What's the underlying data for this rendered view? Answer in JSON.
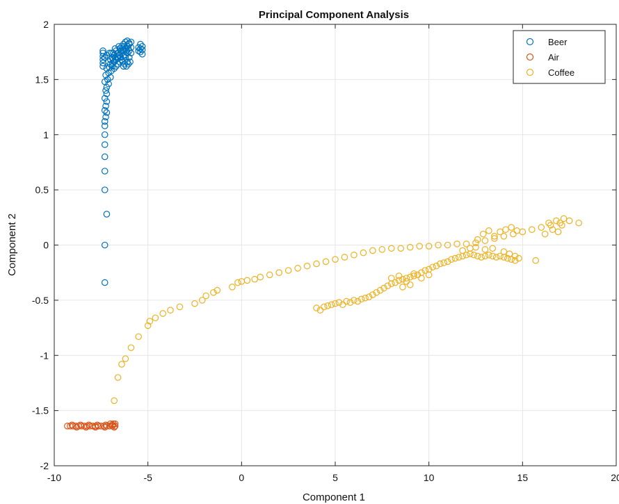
{
  "chart_data": {
    "type": "scatter",
    "title": "Principal Component Analysis",
    "xlabel": "Component 1",
    "ylabel": "Component 2",
    "xlim": [
      -10,
      20
    ],
    "ylim": [
      -2,
      2
    ],
    "xticks": [
      -10,
      -5,
      0,
      5,
      10,
      15,
      20
    ],
    "yticks": [
      -2,
      -1.5,
      -1,
      -0.5,
      0,
      0.5,
      1,
      1.5,
      2
    ],
    "xtick_labels": [
      "-10",
      "-5",
      "0",
      "5",
      "10",
      "15",
      "20"
    ],
    "ytick_labels": [
      "-2",
      "-1.5",
      "-1",
      "-0.5",
      "0",
      "0.5",
      "1",
      "1.5",
      "2"
    ],
    "grid": true,
    "legend_position": "top-right",
    "legend": [
      "Beer",
      "Air",
      "Coffee"
    ],
    "series": [
      {
        "name": "Beer",
        "color": "#0072BD",
        "points": [
          [
            -7.3,
            -0.34
          ],
          [
            -7.3,
            0.0
          ],
          [
            -7.2,
            0.28
          ],
          [
            -7.3,
            0.5
          ],
          [
            -7.3,
            0.67
          ],
          [
            -7.3,
            0.8
          ],
          [
            -7.3,
            0.91
          ],
          [
            -7.3,
            1.0
          ],
          [
            -7.3,
            1.08
          ],
          [
            -7.3,
            1.12
          ],
          [
            -7.25,
            1.16
          ],
          [
            -7.2,
            1.2
          ],
          [
            -7.3,
            1.22
          ],
          [
            -7.25,
            1.26
          ],
          [
            -7.2,
            1.3
          ],
          [
            -7.3,
            1.33
          ],
          [
            -7.2,
            1.37
          ],
          [
            -7.25,
            1.4
          ],
          [
            -7.2,
            1.43
          ],
          [
            -7.1,
            1.46
          ],
          [
            -7.3,
            1.48
          ],
          [
            -7.15,
            1.5
          ],
          [
            -7.0,
            1.52
          ],
          [
            -7.25,
            1.54
          ],
          [
            -7.1,
            1.56
          ],
          [
            -6.95,
            1.58
          ],
          [
            -7.2,
            1.6
          ],
          [
            -7.05,
            1.61
          ],
          [
            -6.9,
            1.62
          ],
          [
            -6.8,
            1.6
          ],
          [
            -7.4,
            1.62
          ],
          [
            -7.4,
            1.65
          ],
          [
            -7.4,
            1.68
          ],
          [
            -7.4,
            1.71
          ],
          [
            -7.4,
            1.74
          ],
          [
            -7.4,
            1.76
          ],
          [
            -7.3,
            1.7
          ],
          [
            -7.2,
            1.72
          ],
          [
            -7.1,
            1.66
          ],
          [
            -7.0,
            1.68
          ],
          [
            -6.9,
            1.7
          ],
          [
            -6.8,
            1.72
          ],
          [
            -6.7,
            1.68
          ],
          [
            -6.6,
            1.7
          ],
          [
            -6.5,
            1.72
          ],
          [
            -6.4,
            1.74
          ],
          [
            -6.3,
            1.76
          ],
          [
            -6.2,
            1.78
          ],
          [
            -6.1,
            1.8
          ],
          [
            -6.0,
            1.82
          ],
          [
            -5.9,
            1.84
          ],
          [
            -6.7,
            1.76
          ],
          [
            -6.6,
            1.74
          ],
          [
            -6.5,
            1.78
          ],
          [
            -6.4,
            1.8
          ],
          [
            -6.3,
            1.82
          ],
          [
            -6.2,
            1.84
          ],
          [
            -6.1,
            1.85
          ],
          [
            -6.0,
            1.83
          ],
          [
            -5.9,
            1.79
          ],
          [
            -5.9,
            1.74
          ],
          [
            -6.0,
            1.7
          ],
          [
            -6.1,
            1.66
          ],
          [
            -6.2,
            1.7
          ],
          [
            -6.3,
            1.72
          ],
          [
            -6.4,
            1.68
          ],
          [
            -6.5,
            1.66
          ],
          [
            -6.6,
            1.64
          ],
          [
            -6.7,
            1.62
          ],
          [
            -6.8,
            1.66
          ],
          [
            -6.9,
            1.64
          ],
          [
            -7.0,
            1.64
          ],
          [
            -6.85,
            1.74
          ],
          [
            -6.75,
            1.78
          ],
          [
            -6.55,
            1.8
          ],
          [
            -6.45,
            1.76
          ],
          [
            -6.35,
            1.78
          ],
          [
            -6.25,
            1.8
          ],
          [
            -6.15,
            1.76
          ],
          [
            -6.05,
            1.78
          ],
          [
            -6.05,
            1.64
          ],
          [
            -5.95,
            1.66
          ],
          [
            -6.15,
            1.62
          ],
          [
            -6.25,
            1.64
          ],
          [
            -6.35,
            1.66
          ],
          [
            -6.45,
            1.7
          ],
          [
            -6.55,
            1.72
          ],
          [
            -6.65,
            1.7
          ],
          [
            -6.75,
            1.7
          ],
          [
            -6.85,
            1.68
          ],
          [
            -6.95,
            1.74
          ],
          [
            -7.05,
            1.74
          ],
          [
            -6.2,
            1.72
          ],
          [
            -6.1,
            1.74
          ],
          [
            -6.0,
            1.76
          ],
          [
            -6.3,
            1.62
          ],
          [
            -5.4,
            1.82
          ],
          [
            -5.4,
            1.78
          ],
          [
            -5.4,
            1.75
          ],
          [
            -5.3,
            1.8
          ],
          [
            -5.3,
            1.77
          ],
          [
            -5.3,
            1.73
          ],
          [
            -5.5,
            1.79
          ],
          [
            -5.5,
            1.76
          ]
        ]
      },
      {
        "name": "Air",
        "color": "#D95319",
        "points": [
          [
            -9.3,
            -1.64
          ],
          [
            -9.15,
            -1.64
          ],
          [
            -9.0,
            -1.64
          ],
          [
            -8.85,
            -1.64
          ],
          [
            -8.7,
            -1.64
          ],
          [
            -8.55,
            -1.64
          ],
          [
            -8.4,
            -1.64
          ],
          [
            -8.25,
            -1.64
          ],
          [
            -8.1,
            -1.64
          ],
          [
            -7.95,
            -1.64
          ],
          [
            -7.8,
            -1.64
          ],
          [
            -7.65,
            -1.64
          ],
          [
            -7.5,
            -1.64
          ],
          [
            -7.35,
            -1.64
          ],
          [
            -7.2,
            -1.64
          ],
          [
            -7.05,
            -1.64
          ],
          [
            -6.9,
            -1.64
          ],
          [
            -6.75,
            -1.64
          ],
          [
            -9.05,
            -1.63
          ],
          [
            -8.6,
            -1.63
          ],
          [
            -8.15,
            -1.63
          ],
          [
            -7.7,
            -1.63
          ],
          [
            -7.25,
            -1.63
          ],
          [
            -6.9,
            -1.63
          ],
          [
            -8.8,
            -1.65
          ],
          [
            -8.3,
            -1.65
          ],
          [
            -7.8,
            -1.65
          ],
          [
            -7.3,
            -1.65
          ],
          [
            -6.8,
            -1.65
          ],
          [
            -6.85,
            -1.62
          ],
          [
            -6.75,
            -1.62
          ],
          [
            -7.0,
            -1.62
          ]
        ]
      },
      {
        "name": "Coffee",
        "color": "#EDB120",
        "points": [
          [
            -6.8,
            -1.41
          ],
          [
            -6.6,
            -1.2
          ],
          [
            -6.4,
            -1.08
          ],
          [
            -6.2,
            -1.03
          ],
          [
            -5.9,
            -0.93
          ],
          [
            -5.5,
            -0.83
          ],
          [
            -5.0,
            -0.73
          ],
          [
            -4.9,
            -0.69
          ],
          [
            -4.6,
            -0.66
          ],
          [
            -4.2,
            -0.62
          ],
          [
            -3.8,
            -0.59
          ],
          [
            -3.3,
            -0.56
          ],
          [
            -2.5,
            -0.53
          ],
          [
            -2.1,
            -0.5
          ],
          [
            -1.9,
            -0.46
          ],
          [
            -1.5,
            -0.43
          ],
          [
            -1.3,
            -0.41
          ],
          [
            -0.5,
            -0.38
          ],
          [
            -0.2,
            -0.34
          ],
          [
            0.0,
            -0.33
          ],
          [
            0.3,
            -0.32
          ],
          [
            0.7,
            -0.31
          ],
          [
            1.0,
            -0.29
          ],
          [
            1.5,
            -0.27
          ],
          [
            2.0,
            -0.25
          ],
          [
            2.5,
            -0.23
          ],
          [
            3.0,
            -0.21
          ],
          [
            3.5,
            -0.19
          ],
          [
            4.0,
            -0.17
          ],
          [
            4.5,
            -0.15
          ],
          [
            5.0,
            -0.13
          ],
          [
            5.5,
            -0.11
          ],
          [
            6.0,
            -0.09
          ],
          [
            6.5,
            -0.07
          ],
          [
            7.0,
            -0.05
          ],
          [
            7.5,
            -0.04
          ],
          [
            8.0,
            -0.03
          ],
          [
            8.5,
            -0.03
          ],
          [
            9.0,
            -0.02
          ],
          [
            9.5,
            -0.01
          ],
          [
            10.0,
            -0.01
          ],
          [
            10.5,
            0.0
          ],
          [
            11.0,
            0.0
          ],
          [
            11.5,
            0.01
          ],
          [
            12.0,
            0.01
          ],
          [
            12.5,
            0.02
          ],
          [
            13.0,
            0.04
          ],
          [
            13.5,
            0.06
          ],
          [
            14.0,
            0.08
          ],
          [
            14.5,
            0.1
          ],
          [
            15.0,
            0.12
          ],
          [
            15.5,
            0.14
          ],
          [
            16.0,
            0.16
          ],
          [
            16.5,
            0.18
          ],
          [
            17.0,
            0.2
          ],
          [
            17.5,
            0.22
          ],
          [
            18.0,
            0.2
          ],
          [
            17.2,
            0.24
          ],
          [
            16.8,
            0.22
          ],
          [
            16.6,
            0.14
          ],
          [
            16.9,
            0.12
          ],
          [
            17.1,
            0.18
          ],
          [
            16.4,
            0.2
          ],
          [
            16.2,
            0.1
          ],
          [
            4.0,
            -0.57
          ],
          [
            4.2,
            -0.59
          ],
          [
            4.4,
            -0.56
          ],
          [
            4.6,
            -0.55
          ],
          [
            4.8,
            -0.54
          ],
          [
            5.0,
            -0.53
          ],
          [
            5.2,
            -0.52
          ],
          [
            5.4,
            -0.54
          ],
          [
            5.6,
            -0.51
          ],
          [
            5.8,
            -0.52
          ],
          [
            6.0,
            -0.5
          ],
          [
            6.2,
            -0.51
          ],
          [
            6.4,
            -0.49
          ],
          [
            6.6,
            -0.48
          ],
          [
            6.8,
            -0.47
          ],
          [
            7.0,
            -0.45
          ],
          [
            7.2,
            -0.43
          ],
          [
            7.4,
            -0.41
          ],
          [
            7.6,
            -0.39
          ],
          [
            7.8,
            -0.37
          ],
          [
            8.0,
            -0.35
          ],
          [
            8.2,
            -0.34
          ],
          [
            8.4,
            -0.32
          ],
          [
            8.6,
            -0.31
          ],
          [
            8.8,
            -0.3
          ],
          [
            9.0,
            -0.29
          ],
          [
            9.2,
            -0.28
          ],
          [
            9.4,
            -0.27
          ],
          [
            9.6,
            -0.25
          ],
          [
            9.8,
            -0.23
          ],
          [
            10.0,
            -0.22
          ],
          [
            10.2,
            -0.2
          ],
          [
            10.4,
            -0.19
          ],
          [
            10.6,
            -0.17
          ],
          [
            10.8,
            -0.16
          ],
          [
            11.0,
            -0.15
          ],
          [
            11.2,
            -0.13
          ],
          [
            11.4,
            -0.12
          ],
          [
            11.6,
            -0.11
          ],
          [
            11.8,
            -0.1
          ],
          [
            12.0,
            -0.09
          ],
          [
            12.2,
            -0.08
          ],
          [
            12.4,
            -0.09
          ],
          [
            12.6,
            -0.1
          ],
          [
            12.8,
            -0.11
          ],
          [
            13.0,
            -0.1
          ],
          [
            13.2,
            -0.09
          ],
          [
            13.4,
            -0.1
          ],
          [
            13.6,
            -0.11
          ],
          [
            13.8,
            -0.1
          ],
          [
            14.0,
            -0.11
          ],
          [
            14.2,
            -0.12
          ],
          [
            14.4,
            -0.13
          ],
          [
            14.6,
            -0.14
          ],
          [
            14.8,
            -0.12
          ],
          [
            15.7,
            -0.14
          ],
          [
            8.0,
            -0.3
          ],
          [
            8.4,
            -0.28
          ],
          [
            8.8,
            -0.33
          ],
          [
            9.2,
            -0.26
          ],
          [
            9.6,
            -0.3
          ],
          [
            10.0,
            -0.27
          ],
          [
            8.6,
            -0.38
          ],
          [
            9.0,
            -0.36
          ],
          [
            12.6,
            0.05
          ],
          [
            12.9,
            0.1
          ],
          [
            13.2,
            0.13
          ],
          [
            13.5,
            0.08
          ],
          [
            13.8,
            0.12
          ],
          [
            14.1,
            0.14
          ],
          [
            14.4,
            0.16
          ],
          [
            14.7,
            0.13
          ],
          [
            12.5,
            -0.02
          ],
          [
            13.0,
            -0.04
          ],
          [
            13.4,
            -0.03
          ],
          [
            14.0,
            -0.06
          ],
          [
            14.3,
            -0.08
          ],
          [
            14.6,
            -0.1
          ],
          [
            11.8,
            -0.05
          ],
          [
            12.2,
            -0.03
          ]
        ]
      }
    ]
  }
}
